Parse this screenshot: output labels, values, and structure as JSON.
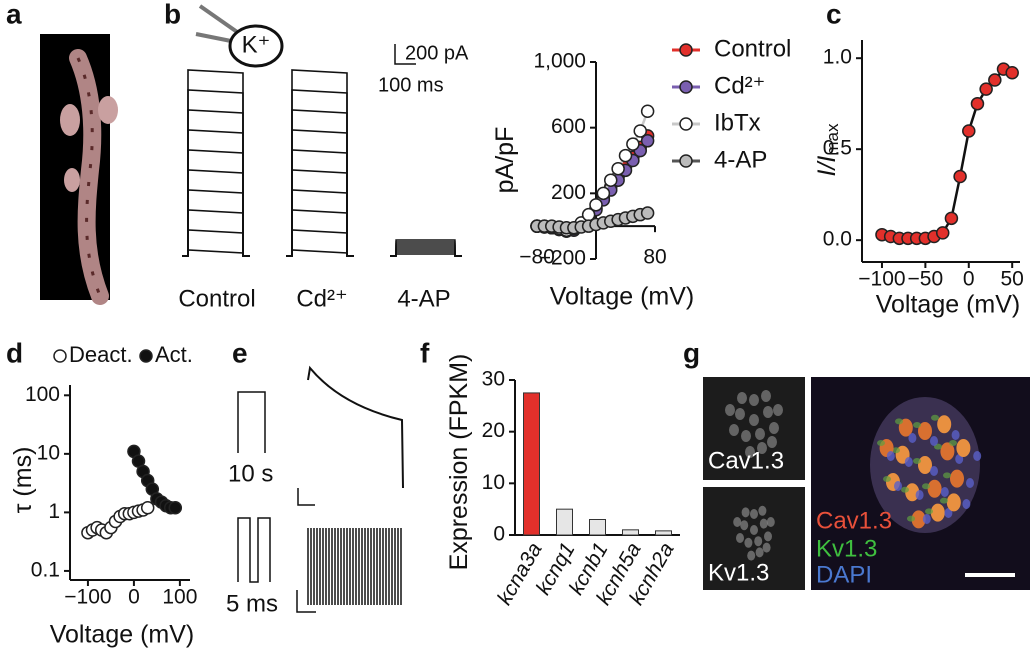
{
  "panels": [
    "a",
    "b",
    "c",
    "d",
    "e",
    "f",
    "g"
  ],
  "panel_b": {
    "ion": "K⁺",
    "traces": [
      "Control",
      "Cd²⁺",
      "4-AP"
    ],
    "scale_current": "200 pA",
    "scale_time": "100 ms"
  },
  "panel_e": {
    "top_duration": "10 s",
    "bottom_duration": "5 ms"
  },
  "panel_g": {
    "small": [
      "Cav1.3",
      "Kv1.3"
    ],
    "merge": [
      "Cav1.3",
      "Kv1.3",
      "DAPI"
    ]
  },
  "chart_data": [
    {
      "type": "line",
      "xlabel": "Voltage (mV)",
      "ylabel": "pA/pF",
      "x": [
        -80,
        -70,
        -60,
        -50,
        -40,
        -30,
        -20,
        -10,
        0,
        10,
        20,
        30,
        40,
        50,
        60,
        70
      ],
      "xlim": [
        -80,
        80
      ],
      "xticks": [
        {
          "value": -80,
          "label": "−80"
        },
        {
          "value": 80,
          "label": "80"
        }
      ],
      "ylim": [
        -200,
        1000
      ],
      "yticks": [
        {
          "value": -200,
          "label": "−200"
        },
        200,
        600,
        {
          "value": 1000,
          "label": "1,000"
        }
      ],
      "legend": "right",
      "series": [
        {
          "name": "Control",
          "color": "#e2302b",
          "values": [
            0,
            -5,
            -10,
            -20,
            -30,
            -20,
            10,
            60,
            110,
            170,
            240,
            300,
            360,
            420,
            480,
            550
          ]
        },
        {
          "name": "Cd²⁺",
          "color": "#7a5fb0",
          "values": [
            0,
            -5,
            -10,
            -20,
            -30,
            -25,
            0,
            50,
            100,
            160,
            220,
            280,
            340,
            400,
            460,
            520
          ]
        },
        {
          "name": "IbTx",
          "color": "#c8c8c8",
          "marker_fill": "#ffffff",
          "values": [
            0,
            0,
            -5,
            -15,
            -25,
            -15,
            20,
            70,
            130,
            200,
            280,
            350,
            430,
            500,
            580,
            700
          ]
        },
        {
          "name": "4-AP",
          "color": "#555555",
          "marker_fill": "#bbbbbb",
          "values": [
            0,
            0,
            0,
            -5,
            -10,
            -10,
            -5,
            0,
            10,
            20,
            30,
            40,
            50,
            60,
            70,
            80
          ]
        }
      ]
    },
    {
      "type": "line",
      "xlabel": "Voltage (mV)",
      "ylabel": "I/I",
      "ylabel_sub": "max",
      "x": [
        -100,
        -90,
        -80,
        -70,
        -60,
        -50,
        -40,
        -30,
        -20,
        -10,
        0,
        10,
        20,
        30,
        40,
        50
      ],
      "values": [
        0.03,
        0.02,
        0.01,
        0.01,
        0.01,
        0.01,
        0.02,
        0.04,
        0.12,
        0.35,
        0.6,
        0.75,
        0.83,
        0.88,
        0.94,
        0.92
      ],
      "color": "#e2302b",
      "line_color": "#111111",
      "xlim": [
        -123,
        59
      ],
      "xticks": [
        {
          "value": -100,
          "label": "−100"
        },
        {
          "value": -50,
          "label": "−50"
        },
        0,
        50
      ],
      "ylim": [
        -0.12,
        1.1
      ],
      "yticks": [
        {
          "value": 0,
          "label": "0.0"
        },
        {
          "value": 0.5,
          "label": "0.5"
        },
        {
          "value": 1,
          "label": "1.0"
        }
      ]
    },
    {
      "type": "scatter",
      "xlabel": "Voltage (mV)",
      "ylabel": "τ (ms)",
      "log_y": true,
      "legend": "top",
      "xlim": [
        -139,
        122
      ],
      "xticks": [
        {
          "value": -100,
          "label": "−100"
        },
        0,
        100
      ],
      "ylim": [
        0.07,
        150
      ],
      "yticks": [
        0.1,
        1,
        10,
        100
      ],
      "series": [
        {
          "name": "Deact.",
          "color": "#111111",
          "marker_fill": "#ffffff",
          "x": [
            -100,
            -90,
            -80,
            -70,
            -60,
            -50,
            -40,
            -30,
            -20,
            -10,
            0,
            10,
            20,
            30
          ],
          "values": [
            0.45,
            0.5,
            0.55,
            0.5,
            0.45,
            0.55,
            0.7,
            0.85,
            0.95,
            0.95,
            1.0,
            1.05,
            1.1,
            1.2
          ]
        },
        {
          "name": "Act.",
          "color": "#111111",
          "x": [
            0,
            10,
            20,
            30,
            40,
            50,
            60,
            70,
            80,
            90
          ],
          "values": [
            11,
            7.5,
            5,
            3.5,
            2.5,
            1.7,
            1.5,
            1.3,
            1.2,
            1.2
          ]
        }
      ]
    },
    {
      "type": "bar",
      "ylabel": "Expression (FPKM)",
      "categories": [
        "kcna3a",
        "kcnq1",
        "kcnb1",
        "kcnh5a",
        "kcnh2a"
      ],
      "values": [
        27.5,
        5,
        3,
        1,
        0.8
      ],
      "colors": [
        "#e2302b",
        "#e6e6e6",
        "#e6e6e6",
        "#e6e6e6",
        "#e6e6e6"
      ],
      "ylim": [
        0,
        30
      ],
      "yticks": [
        0,
        10,
        20,
        30
      ]
    }
  ]
}
